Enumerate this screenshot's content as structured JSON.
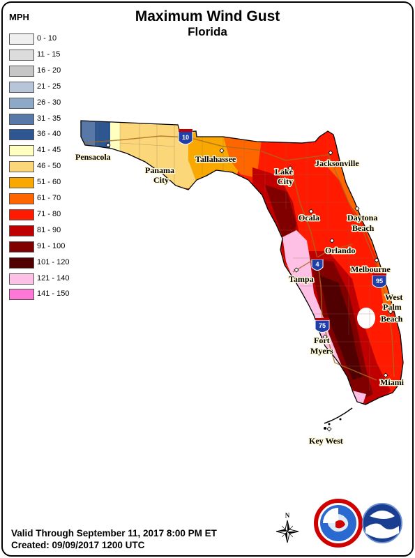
{
  "title": "Maximum Wind Gust",
  "subtitle": "Florida",
  "legend": {
    "unit": "MPH",
    "entries": [
      {
        "label": "0 - 10",
        "color": "#efefef"
      },
      {
        "label": "11 - 15",
        "color": "#dcdcdc"
      },
      {
        "label": "16 - 20",
        "color": "#c6c6c6"
      },
      {
        "label": "21 - 25",
        "color": "#b8c4d8"
      },
      {
        "label": "26 - 30",
        "color": "#8ea8c8"
      },
      {
        "label": "31 - 35",
        "color": "#5878a8"
      },
      {
        "label": "36 - 40",
        "color": "#2e5690"
      },
      {
        "label": "41 - 45",
        "color": "#ffffc0"
      },
      {
        "label": "46 - 50",
        "color": "#fcd77a"
      },
      {
        "label": "51 - 60",
        "color": "#f8a800"
      },
      {
        "label": "61 - 70",
        "color": "#ff6600"
      },
      {
        "label": "71 - 80",
        "color": "#ff1a00"
      },
      {
        "label": "81 - 90",
        "color": "#c00000"
      },
      {
        "label": "91 - 100",
        "color": "#800000"
      },
      {
        "label": "101 - 120",
        "color": "#500000"
      },
      {
        "label": "121 - 140",
        "color": "#ffc0e6"
      },
      {
        "label": "141 - 150",
        "color": "#ff78d8"
      }
    ]
  },
  "cities": [
    {
      "name": "Pensacola"
    },
    {
      "name": "Panama"
    },
    {
      "name": "City"
    },
    {
      "name": "Tallahassee"
    },
    {
      "name": "Lake"
    },
    {
      "name": "City"
    },
    {
      "name": "Jacksonville"
    },
    {
      "name": "Ocala"
    },
    {
      "name": "Daytona"
    },
    {
      "name": "Beach"
    },
    {
      "name": "Orlando"
    },
    {
      "name": "Melbourne"
    },
    {
      "name": "Tampa"
    },
    {
      "name": "West"
    },
    {
      "name": "Palm"
    },
    {
      "name": "Beach"
    },
    {
      "name": "Fort"
    },
    {
      "name": "Myers"
    },
    {
      "name": "Miami"
    },
    {
      "name": "Key West"
    }
  ],
  "highways": {
    "i10": "10",
    "i4": "4",
    "i95": "95",
    "i75": "75"
  },
  "compass": {
    "north": "N"
  },
  "footer": {
    "valid": "Valid Through September 11, 2017 8:00 PM ET",
    "created": "Created: 09/09/2017 1200 UTC"
  }
}
